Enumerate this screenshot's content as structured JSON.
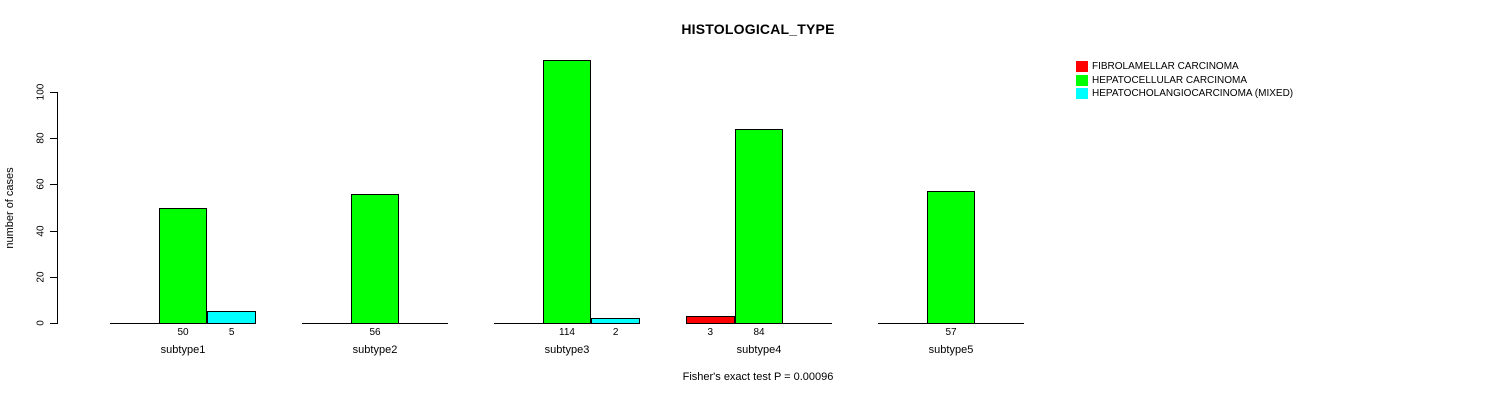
{
  "chart_data": {
    "type": "bar",
    "title": "HISTOLOGICAL_TYPE",
    "ylabel": "number of cases",
    "xlabel": "",
    "footnote": "Fisher's exact test P = 0.00096",
    "categories": [
      "subtype1",
      "subtype2",
      "subtype3",
      "subtype4",
      "subtype5"
    ],
    "series": [
      {
        "name": "FIBROLAMELLAR CARCINOMA",
        "color": "#ff0000",
        "values": [
          0,
          0,
          0,
          3,
          0
        ]
      },
      {
        "name": "HEPATOCELLULAR CARCINOMA",
        "color": "#00ff00",
        "values": [
          50,
          56,
          114,
          84,
          57
        ]
      },
      {
        "name": "HEPATOCHOLANGIOCARCINOMA (MIXED)",
        "color": "#00ffff",
        "values": [
          5,
          0,
          2,
          0,
          0
        ]
      }
    ],
    "yticks": [
      0,
      20,
      40,
      60,
      80,
      100
    ],
    "ylim": [
      0,
      116
    ],
    "grid": false,
    "legend_position": "top-right",
    "show_value_labels": true,
    "value_labels_only_nonzero": true
  }
}
